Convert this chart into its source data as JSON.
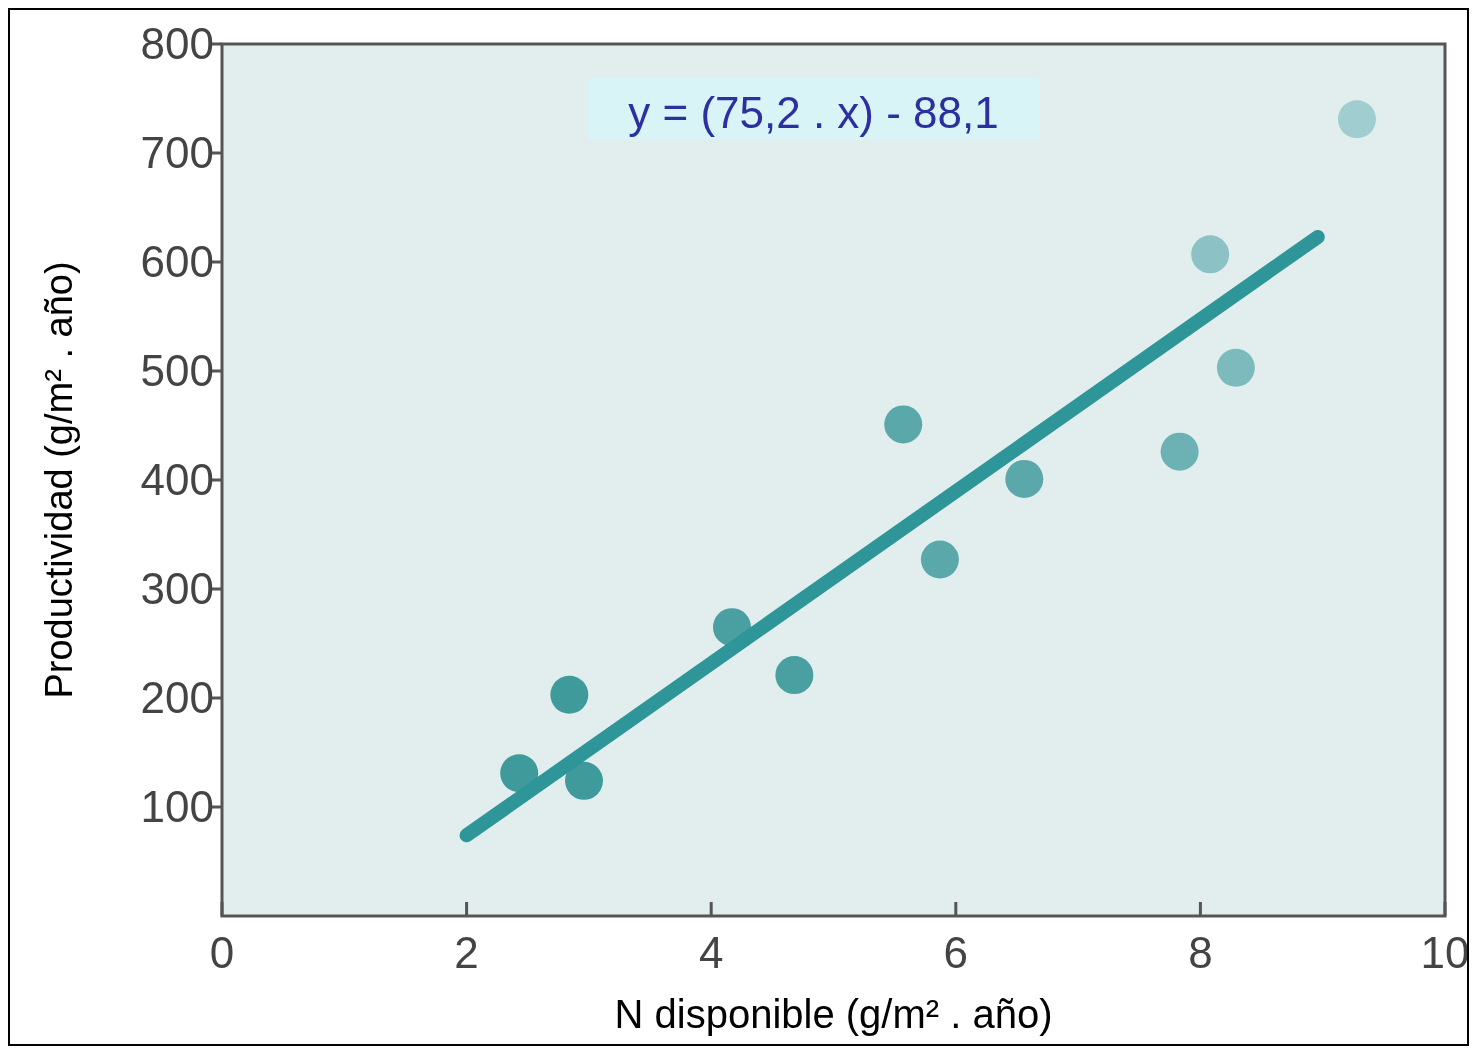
{
  "chart_data": {
    "type": "scatter",
    "xlabel": "N disponible (g/m² . año)",
    "ylabel": "Productividad (g/m² . año)",
    "annotations": [
      "y = (75,2 . x) - 88,1"
    ],
    "series": [
      {
        "marker": "circle",
        "x": [
          2.43,
          2.84,
          2.96,
          4.17,
          4.68,
          5.57,
          5.87,
          6.56,
          7.83,
          8.08,
          8.29,
          9.28
        ],
        "values": [
          131,
          203,
          124,
          265,
          221,
          451,
          327,
          401,
          426,
          607,
          503,
          731
        ],
        "colors": [
          "#3f9a9c",
          "#3f9a9c",
          "#3f9a9c",
          "#4a9fa1",
          "#4a9fa1",
          "#5aa8aa",
          "#5aa8aa",
          "#5aa8aa",
          "#6cb2b5",
          "#8cc2c5",
          "#7cbabd",
          "#a0cdd0"
        ]
      },
      {
        "type": "line",
        "x": [
          2,
          8.96
        ],
        "values": [
          74,
          623
        ],
        "color": "#2e9598"
      }
    ],
    "xlim": [
      0,
      10
    ],
    "ylim": [
      0,
      800
    ],
    "xticks": [
      0,
      2,
      4,
      6,
      8,
      10
    ],
    "yticks": [
      100,
      200,
      300,
      400,
      500,
      600,
      700,
      800
    ],
    "grid": false,
    "line_style": "solid"
  }
}
